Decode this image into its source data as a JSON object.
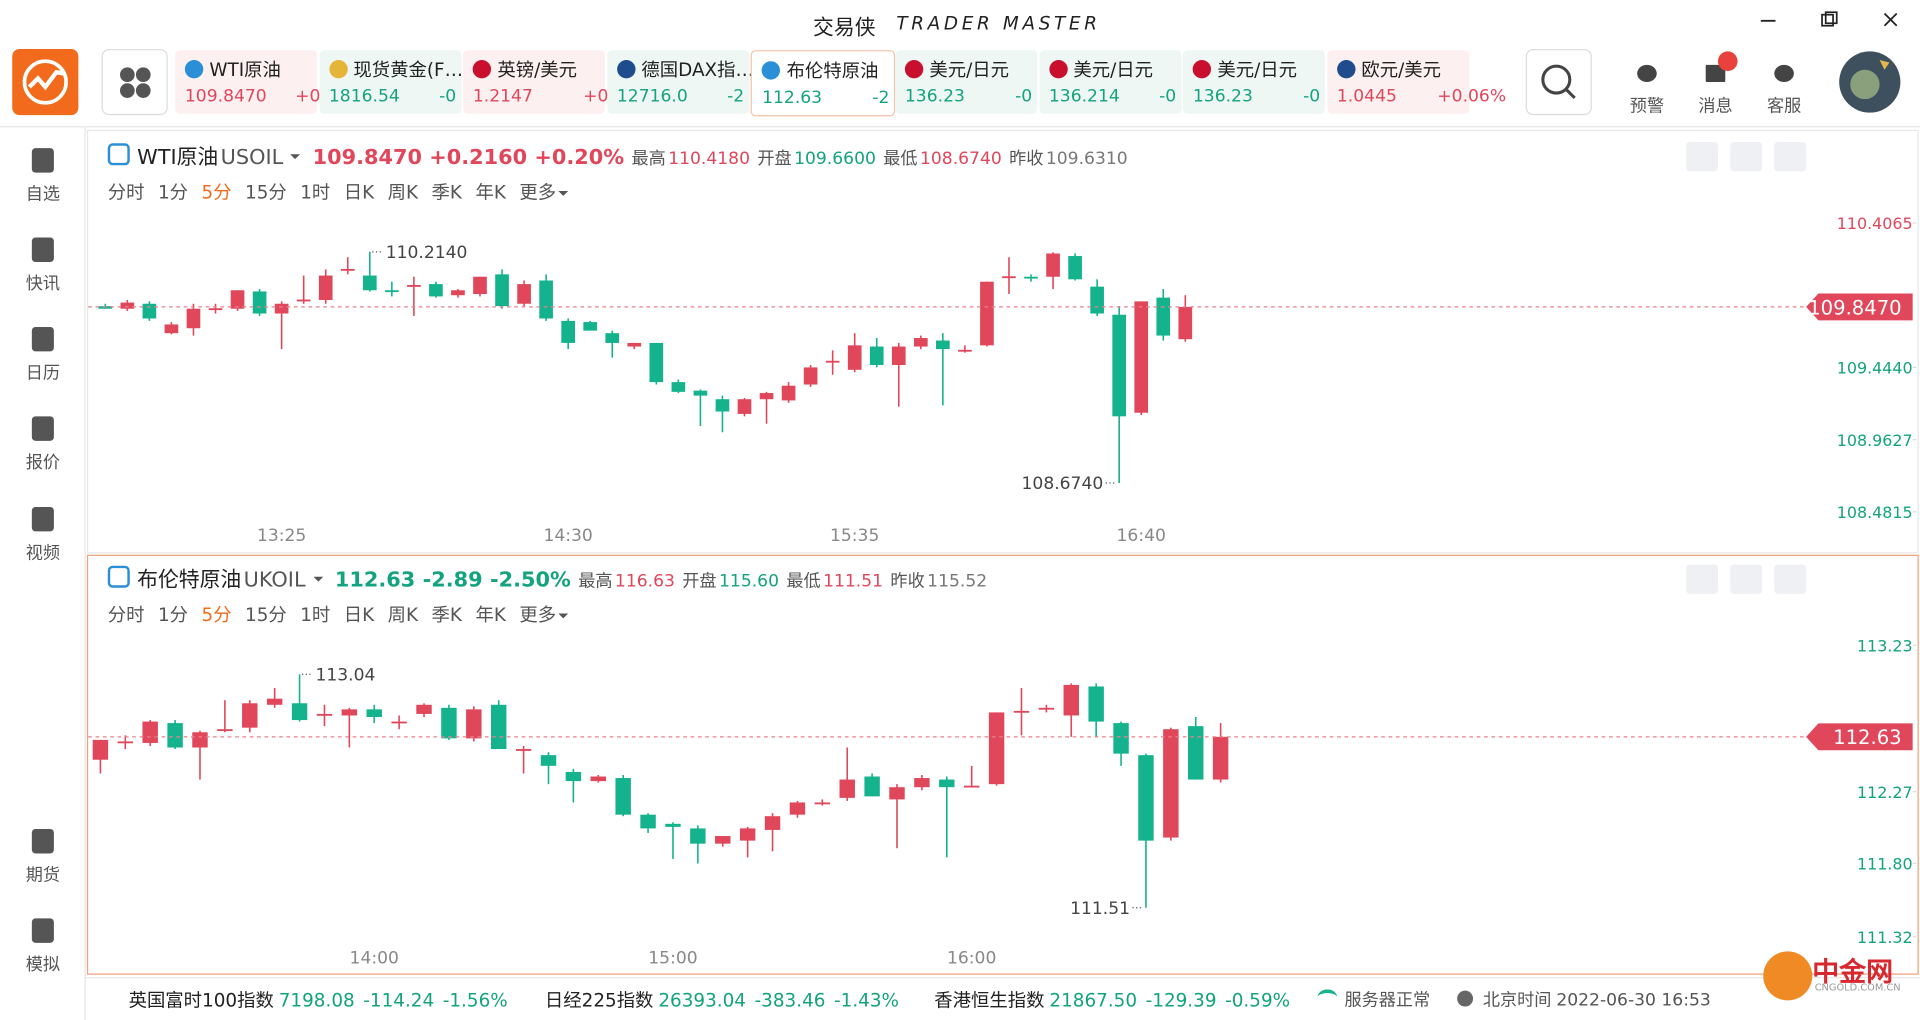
{
  "app": {
    "title": "交易侠",
    "subtitle": "TRADER MASTER"
  },
  "tickers": [
    {
      "name": "WTI原油",
      "price": "109.8470",
      "change": "+0"
    },
    {
      "name": "现货黄金(F…",
      "price": "1816.54",
      "change": "-0"
    },
    {
      "name": "英镑/美元",
      "price": "1.2147",
      "change": "+0"
    },
    {
      "name": "德国DAX指…",
      "price": "12716.0",
      "change": "-2"
    },
    {
      "name": "布伦特原油",
      "price": "112.63",
      "change": "-2"
    },
    {
      "name": "美元/日元",
      "price": "136.23",
      "change": "-0"
    },
    {
      "name": "美元/日元",
      "price": "136.214",
      "change": "-0"
    },
    {
      "name": "美元/日元",
      "price": "136.23",
      "change": "-0"
    },
    {
      "name": "欧元/美元",
      "price": "1.0445",
      "change": "+0.06%"
    }
  ],
  "active_ticker": "布伦特原油",
  "top_actions": [
    "预警",
    "消息",
    "客服"
  ],
  "sidebar": [
    "自选",
    "快讯",
    "日历",
    "报价",
    "视频"
  ],
  "sidebar_bottom": [
    "期货",
    "模拟"
  ],
  "periods": [
    "分时",
    "1分",
    "5分",
    "15分",
    "1时",
    "日K",
    "周K",
    "季K",
    "年K",
    "更多"
  ],
  "active_period": "5分",
  "panels": [
    {
      "name": "WTI原油",
      "code": "USOIL",
      "price": "109.8470",
      "change": "+0.2160",
      "percent": "+0.20%",
      "stats": [
        {
          "label": "最高",
          "value": "110.4180"
        },
        {
          "label": "开盘",
          "value": "109.6600"
        },
        {
          "label": "最低",
          "value": "108.6740"
        },
        {
          "label": "昨收",
          "value": "109.6310"
        }
      ]
    },
    {
      "name": "布伦特原油",
      "code": "UKOIL",
      "price": "112.63",
      "change": "-2.89",
      "percent": "-2.50%",
      "stats": [
        {
          "label": "最高",
          "value": "116.63"
        },
        {
          "label": "开盘",
          "value": "115.60"
        },
        {
          "label": "最低",
          "value": "111.51"
        },
        {
          "label": "昨收",
          "value": "115.52"
        }
      ]
    }
  ],
  "chart_data": [
    {
      "type": "candlestick",
      "up_color": "#e0475b",
      "down_color": "#14b38d",
      "prev_close": 109.631,
      "categories": [
        null,
        null,
        null,
        null,
        null,
        null,
        null,
        null,
        "13:25",
        null,
        null,
        null,
        null,
        null,
        null,
        null,
        null,
        null,
        null,
        null,
        null,
        "14:30",
        null,
        null,
        null,
        null,
        null,
        null,
        null,
        null,
        null,
        null,
        null,
        null,
        "15:35",
        null,
        null,
        null,
        null,
        null,
        null,
        null,
        null,
        null,
        null,
        null,
        null,
        "16:40",
        null,
        null
      ],
      "open": [
        109.852,
        109.835,
        109.868,
        109.672,
        109.705,
        109.835,
        109.835,
        109.95,
        109.803,
        109.893,
        109.893,
        110.097,
        110.056,
        109.958,
        109.99,
        109.999,
        109.925,
        109.933,
        110.064,
        109.868,
        110.023,
        109.754,
        109.746,
        109.672,
        109.583,
        109.607,
        109.346,
        109.289,
        109.232,
        109.134,
        109.232,
        109.224,
        109.33,
        109.485,
        109.428,
        109.583,
        109.46,
        109.583,
        109.623,
        109.558,
        109.591,
        110.048,
        110.048,
        110.048,
        110.186,
        109.982,
        109.795,
        109.142,
        109.909,
        109.632
      ],
      "high": [
        109.868,
        109.893,
        109.884,
        109.746,
        109.868,
        109.868,
        109.958,
        109.966,
        109.884,
        110.056,
        110.097,
        110.178,
        110.214,
        110.015,
        110.048,
        110.015,
        109.966,
        110.048,
        110.097,
        110.023,
        110.064,
        109.77,
        109.754,
        109.689,
        109.607,
        109.607,
        109.363,
        109.297,
        109.256,
        109.24,
        109.281,
        109.346,
        109.46,
        109.558,
        109.672,
        109.64,
        109.607,
        109.656,
        109.672,
        109.591,
        110.015,
        110.178,
        110.064,
        110.211,
        110.203,
        110.031,
        109.852,
        109.884,
        109.966,
        109.925
      ],
      "low": [
        109.835,
        109.82,
        109.754,
        109.664,
        109.656,
        109.803,
        109.82,
        109.787,
        109.566,
        109.868,
        109.868,
        110.064,
        109.95,
        109.917,
        109.787,
        109.909,
        109.909,
        109.917,
        109.835,
        109.852,
        109.754,
        109.566,
        109.689,
        109.509,
        109.566,
        109.33,
        109.273,
        109.053,
        109.012,
        109.118,
        109.069,
        109.208,
        109.314,
        109.395,
        109.412,
        109.444,
        109.183,
        109.566,
        109.191,
        109.542,
        109.583,
        109.933,
        110.015,
        109.966,
        110.023,
        109.787,
        108.674,
        109.126,
        109.623,
        109.615
      ],
      "close": [
        109.835,
        109.876,
        109.77,
        109.73,
        109.835,
        109.838,
        109.958,
        109.803,
        109.868,
        109.896,
        110.056,
        110.1,
        109.958,
        109.955,
        109.993,
        109.917,
        109.958,
        110.048,
        109.852,
        109.999,
        109.77,
        109.607,
        109.689,
        109.607,
        109.607,
        109.346,
        109.281,
        109.256,
        109.15,
        109.232,
        109.273,
        109.322,
        109.444,
        109.488,
        109.591,
        109.46,
        109.583,
        109.64,
        109.566,
        109.561,
        110.015,
        110.051,
        110.045,
        110.203,
        110.031,
        109.803,
        109.118,
        109.884,
        109.656,
        109.847
      ],
      "ylim": [
        108.4,
        110.505
      ],
      "yticks": [
        110.4065,
        {
          "value": 109.444,
          "label": "109.4440"
        },
        108.9627,
        108.4815
      ],
      "last": {
        "value": 109.847,
        "label": "109.8470"
      },
      "max_label": {
        "value": 110.214,
        "label": "110.2140"
      },
      "min_label": {
        "value": 108.674,
        "label": "108.6740"
      }
    },
    {
      "type": "candlestick",
      "up_color": "#e0475b",
      "down_color": "#14b38d",
      "prev_close": 115.52,
      "categories": [
        null,
        null,
        null,
        null,
        null,
        null,
        null,
        null,
        null,
        null,
        null,
        "14:00",
        null,
        null,
        null,
        null,
        null,
        null,
        null,
        null,
        null,
        null,
        null,
        "15:00",
        null,
        null,
        null,
        null,
        null,
        null,
        null,
        null,
        null,
        null,
        null,
        "16:00",
        null,
        null,
        null,
        null,
        null,
        null,
        null,
        null,
        null,
        null
      ],
      "open": [
        112.48,
        112.6,
        112.59,
        112.72,
        112.56,
        112.68,
        112.69,
        112.84,
        112.85,
        112.78,
        112.77,
        112.81,
        112.73,
        112.78,
        112.82,
        112.62,
        112.84,
        112.55,
        112.51,
        112.4,
        112.34,
        112.36,
        112.12,
        112.06,
        112.03,
        111.93,
        111.95,
        112.02,
        112.12,
        112.2,
        112.23,
        112.37,
        112.22,
        112.3,
        112.35,
        112.31,
        112.32,
        112.8,
        112.82,
        112.77,
        112.96,
        112.72,
        112.51,
        111.97,
        112.7,
        112.35
      ],
      "high": [
        112.61,
        112.64,
        112.74,
        112.74,
        112.67,
        112.87,
        112.87,
        112.95,
        113.04,
        112.84,
        112.82,
        112.84,
        112.77,
        112.85,
        112.84,
        112.83,
        112.87,
        112.57,
        112.53,
        112.42,
        112.38,
        112.38,
        112.13,
        112.07,
        112.05,
        111.98,
        112.04,
        112.13,
        112.21,
        112.22,
        112.56,
        112.39,
        112.32,
        112.38,
        112.37,
        112.44,
        112.79,
        112.95,
        112.84,
        112.98,
        112.98,
        112.73,
        112.52,
        112.69,
        112.76,
        112.72
      ],
      "low": [
        112.39,
        112.55,
        112.57,
        112.55,
        112.35,
        112.66,
        112.66,
        112.82,
        112.73,
        112.7,
        112.56,
        112.72,
        112.68,
        112.76,
        112.61,
        112.6,
        112.55,
        112.39,
        112.32,
        112.2,
        112.33,
        112.11,
        112.0,
        111.83,
        111.8,
        111.91,
        111.84,
        111.88,
        112.1,
        112.18,
        112.21,
        112.24,
        111.9,
        112.28,
        111.84,
        112.3,
        112.31,
        112.64,
        112.79,
        112.63,
        112.63,
        112.44,
        111.51,
        111.95,
        112.35,
        112.33
      ],
      "close": [
        112.61,
        112.6,
        112.73,
        112.56,
        112.66,
        112.68,
        112.85,
        112.88,
        112.74,
        112.78,
        112.81,
        112.76,
        112.73,
        112.84,
        112.62,
        112.81,
        112.55,
        112.55,
        112.44,
        112.34,
        112.37,
        112.12,
        112.03,
        112.04,
        111.93,
        111.98,
        112.03,
        112.11,
        112.2,
        112.2,
        112.35,
        112.24,
        112.3,
        112.36,
        112.3,
        112.31,
        112.79,
        112.8,
        112.82,
        112.97,
        112.73,
        112.52,
        111.95,
        112.68,
        112.35,
        112.63
      ],
      "ylim": [
        111.256,
        113.326
      ],
      "yticks": [
        113.23,
        112.27,
        {
          "value": 111.8,
          "label": "111.80"
        },
        111.32
      ],
      "last": {
        "value": 112.63,
        "label": "112.63"
      },
      "max_label": {
        "value": 113.04,
        "label": "113.04"
      },
      "min_label": {
        "value": 111.51,
        "label": "111.51"
      }
    }
  ],
  "status": {
    "indices": [
      {
        "name": "英国富时100指数",
        "value": "7198.08",
        "change": "-114.24",
        "percent": "-1.56%"
      },
      {
        "name": "日经225指数",
        "value": "26393.04",
        "change": "-383.46",
        "percent": "-1.43%"
      },
      {
        "name": "香港恒生指数",
        "value": "21867.50",
        "change": "-129.39",
        "percent": "-0.59%"
      }
    ],
    "server": "服务器正常",
    "time_label": "北京时间",
    "time": "2022-06-30 16:53"
  },
  "brand": {
    "name": "中金网",
    "url": "CNGOLD.COM.CN"
  }
}
